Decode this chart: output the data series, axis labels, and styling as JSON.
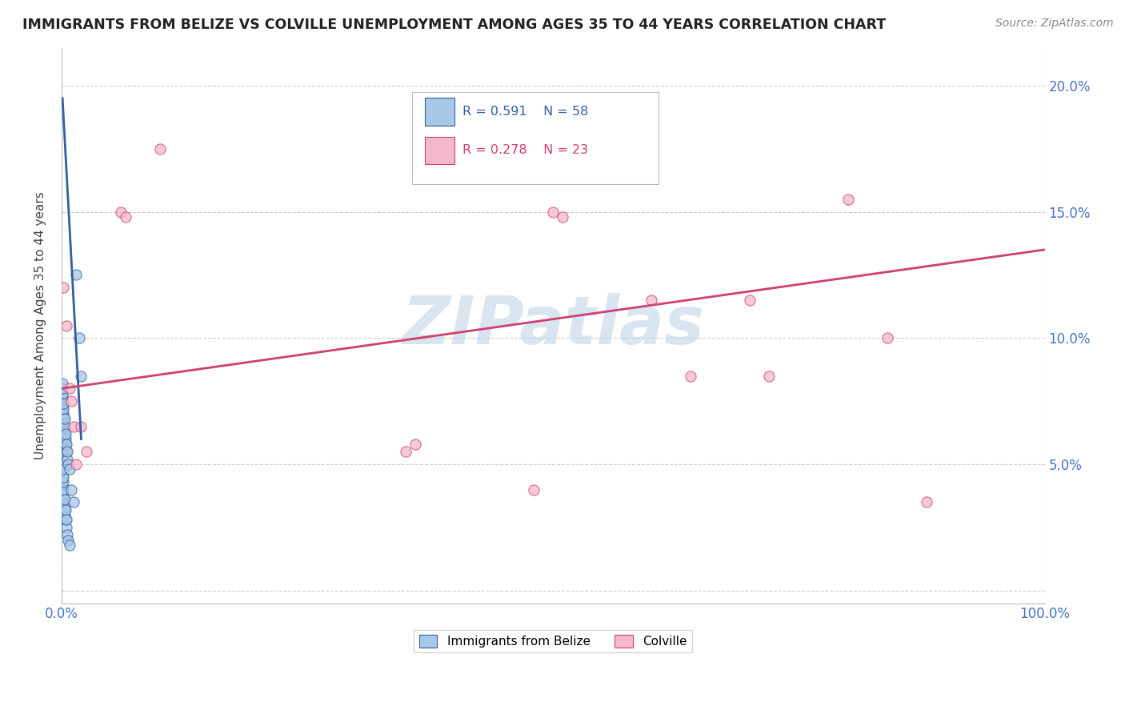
{
  "title": "IMMIGRANTS FROM BELIZE VS COLVILLE UNEMPLOYMENT AMONG AGES 35 TO 44 YEARS CORRELATION CHART",
  "source": "Source: ZipAtlas.com",
  "ylabel": "Unemployment Among Ages 35 to 44 years",
  "xlim": [
    0,
    1.0
  ],
  "ylim": [
    -0.005,
    0.215
  ],
  "xticks": [
    0.0,
    0.1,
    0.2,
    0.3,
    0.4,
    0.5,
    0.6,
    0.7,
    0.8,
    0.9,
    1.0
  ],
  "xticklabels": [
    "0.0%",
    "",
    "",
    "",
    "",
    "",
    "",
    "",
    "",
    "",
    "100.0%"
  ],
  "yticks": [
    0.0,
    0.05,
    0.1,
    0.15,
    0.2
  ],
  "yticklabels": [
    "",
    "5.0%",
    "10.0%",
    "15.0%",
    "20.0%"
  ],
  "blue_R": 0.591,
  "blue_N": 58,
  "pink_R": 0.278,
  "pink_N": 23,
  "blue_color": "#a8c8e8",
  "pink_color": "#f4b8cc",
  "blue_line_color": "#3060a0",
  "pink_line_color": "#d04070",
  "watermark_color": "#c0d4e8",
  "blue_scatter_x": [
    0.001,
    0.001,
    0.001,
    0.001,
    0.001,
    0.001,
    0.001,
    0.001,
    0.001,
    0.001,
    0.001,
    0.001,
    0.001,
    0.001,
    0.001,
    0.001,
    0.001,
    0.001,
    0.001,
    0.001,
    0.002,
    0.002,
    0.002,
    0.002,
    0.002,
    0.002,
    0.002,
    0.002,
    0.002,
    0.002,
    0.003,
    0.003,
    0.003,
    0.003,
    0.003,
    0.003,
    0.003,
    0.004,
    0.004,
    0.004,
    0.004,
    0.004,
    0.005,
    0.005,
    0.005,
    0.005,
    0.006,
    0.006,
    0.006,
    0.007,
    0.007,
    0.008,
    0.008,
    0.01,
    0.012,
    0.015,
    0.018,
    0.02
  ],
  "blue_scatter_y": [
    0.065,
    0.07,
    0.072,
    0.073,
    0.075,
    0.076,
    0.077,
    0.078,
    0.08,
    0.082,
    0.05,
    0.055,
    0.058,
    0.06,
    0.062,
    0.035,
    0.04,
    0.042,
    0.043,
    0.045,
    0.065,
    0.068,
    0.07,
    0.072,
    0.074,
    0.038,
    0.04,
    0.043,
    0.045,
    0.048,
    0.06,
    0.063,
    0.065,
    0.068,
    0.03,
    0.033,
    0.036,
    0.058,
    0.06,
    0.062,
    0.028,
    0.032,
    0.055,
    0.058,
    0.025,
    0.028,
    0.052,
    0.055,
    0.022,
    0.05,
    0.02,
    0.048,
    0.018,
    0.04,
    0.035,
    0.125,
    0.1,
    0.085
  ],
  "pink_scatter_x": [
    0.002,
    0.005,
    0.008,
    0.01,
    0.012,
    0.015,
    0.02,
    0.025,
    0.06,
    0.065,
    0.1,
    0.35,
    0.36,
    0.48,
    0.5,
    0.51,
    0.6,
    0.64,
    0.7,
    0.72,
    0.8,
    0.84,
    0.88
  ],
  "pink_scatter_y": [
    0.12,
    0.105,
    0.08,
    0.075,
    0.065,
    0.05,
    0.065,
    0.055,
    0.15,
    0.148,
    0.175,
    0.055,
    0.058,
    0.04,
    0.15,
    0.148,
    0.115,
    0.085,
    0.115,
    0.085,
    0.155,
    0.1,
    0.035
  ],
  "blue_trend_x": [
    0.001,
    0.02
  ],
  "blue_trend_y": [
    0.195,
    0.06
  ],
  "pink_trend_x": [
    0.0,
    1.0
  ],
  "pink_trend_y": [
    0.08,
    0.135
  ]
}
